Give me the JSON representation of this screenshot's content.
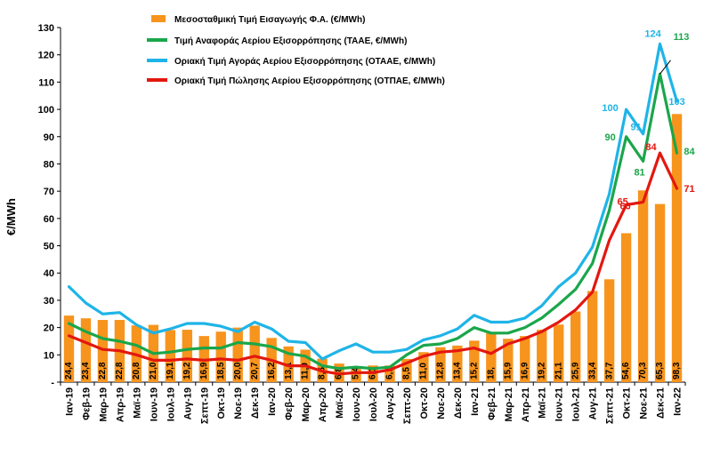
{
  "chart_data": {
    "type": "bar",
    "ylabel": "€/MWh",
    "ylim": [
      0,
      130
    ],
    "yticks": [
      "-",
      "10",
      "20",
      "30",
      "40",
      "50",
      "60",
      "70",
      "80",
      "90",
      "100",
      "110",
      "120",
      "130"
    ],
    "grid": false,
    "legend_position": "top-left",
    "categories": [
      "Ιαν-19",
      "Φεβ-19",
      "Μαρ-19",
      "Απρ-19",
      "Μαϊ-19",
      "Ιουν-19",
      "Ιουλ-19",
      "Αυγ-19",
      "Σεπτ-19",
      "Οκτ-19",
      "Νοε-19",
      "Δεκ-19",
      "Ιαν-20",
      "Φεβ-20",
      "Μαρ-20",
      "Απρ-20",
      "Μαϊ-20",
      "Ιουν-20",
      "Ιουλ-20",
      "Αυγ-20",
      "Σεπτ-20",
      "Οκτ-20",
      "Νοε-20",
      "Δεκ-20",
      "Ιαν-21",
      "Φεβ-21",
      "Μαρ-21",
      "Απρ-21",
      "Μαϊ-21",
      "Ιουν-21",
      "Ιουλ-21",
      "Αυγ-21",
      "Σεπτ-21",
      "Οκτ-21",
      "Νοε-21",
      "Δεκ-21",
      "Ιαν-22"
    ],
    "series": [
      {
        "name": "Μεσοσταθμική Τιμή Εισαγωγής Φ.Α. (€/MWh)",
        "kind": "bar",
        "color": "#F7941D",
        "values": [
          24.4,
          23.4,
          22.8,
          22.8,
          20.8,
          21.0,
          19.1,
          19.2,
          16.9,
          18.5,
          20.0,
          20.7,
          16.2,
          13.1,
          11.9,
          8.6,
          6.8,
          5.4,
          6.1,
          6.1,
          8.5,
          11.0,
          12.8,
          13.4,
          15.2,
          18.0,
          15.9,
          16.9,
          19.2,
          21.1,
          25.9,
          33.4,
          37.7,
          54.6,
          70.3,
          65.3,
          98.3
        ],
        "labels": [
          "24,4",
          "23,4",
          "22,8",
          "22,8",
          "20,8",
          "21,0",
          "19,1",
          "19,2",
          "16,9",
          "18,5",
          "20,0",
          "20,7",
          "16,2",
          "13,1",
          "11,9",
          "8,6",
          "6,8",
          "5,4",
          "6,1",
          "6,1",
          "8,5",
          "11,0",
          "12,8",
          "13,4",
          "15,2",
          "18,",
          "15,9",
          "16,9",
          "19,2",
          "21,1",
          "25,9",
          "33,4",
          "37,7",
          "54,6",
          "70,3",
          "65,3",
          "98,3"
        ]
      },
      {
        "name": "Τιμή Αναφοράς Αερίου Εξισορρόπησης (ΤΑΑΕ, €/MWh)",
        "kind": "line",
        "color": "#1AA64A",
        "values": [
          21.5,
          18.5,
          16,
          15,
          13.5,
          10.5,
          11,
          12,
          12.5,
          12.5,
          14.5,
          14,
          13,
          10.5,
          9.5,
          6,
          5,
          5.5,
          5,
          5.5,
          10,
          13.5,
          14,
          16,
          20,
          18,
          18,
          20,
          23.5,
          28.5,
          34,
          43.5,
          63,
          90,
          81,
          113,
          84
        ]
      },
      {
        "name": "Οριακή Τιμή Αγοράς Αερίου Εξισορρόπησης  (ΟΤΑΑΕ, €/MWh)",
        "kind": "line",
        "color": "#1EB4E8",
        "values": [
          35,
          29,
          25,
          25.5,
          21,
          18,
          19.5,
          21.5,
          21.5,
          20.5,
          18.5,
          22,
          19.5,
          15,
          14.5,
          8.5,
          11.5,
          14,
          11,
          11,
          12,
          15.5,
          17,
          19.5,
          24.5,
          22,
          22,
          23.5,
          28,
          35,
          40,
          49.5,
          69,
          100,
          91,
          124,
          103
        ]
      },
      {
        "name": "Οριακή Τιμή Πώλησης Αερίου Εξισορρόπησης (ΟΤΠΑΕ, €/MWh)",
        "kind": "line",
        "color": "#E3170F",
        "values": [
          17,
          14.5,
          12,
          11.5,
          10,
          8,
          8,
          8.5,
          8,
          8.5,
          8,
          9.5,
          8,
          6,
          6,
          4,
          3,
          3.5,
          3.5,
          4.5,
          7,
          9.5,
          11,
          11.5,
          12.5,
          10.5,
          14,
          16,
          18.5,
          22,
          26.5,
          33,
          52,
          65,
          66,
          84,
          71
        ]
      }
    ],
    "line_labels": [
      {
        "series": 1,
        "index": 33,
        "text": "90"
      },
      {
        "series": 1,
        "index": 34,
        "text": "81"
      },
      {
        "series": 1,
        "index": 35,
        "text": "113"
      },
      {
        "series": 1,
        "index": 36,
        "text": "84"
      },
      {
        "series": 2,
        "index": 33,
        "text": "100"
      },
      {
        "series": 2,
        "index": 34,
        "text": "91"
      },
      {
        "series": 2,
        "index": 35,
        "text": "124"
      },
      {
        "series": 2,
        "index": 36,
        "text": "103"
      },
      {
        "series": 3,
        "index": 33,
        "text": "65"
      },
      {
        "series": 3,
        "index": 34,
        "text": "66"
      },
      {
        "series": 3,
        "index": 35,
        "text": "84"
      },
      {
        "series": 3,
        "index": 36,
        "text": "71"
      }
    ]
  }
}
